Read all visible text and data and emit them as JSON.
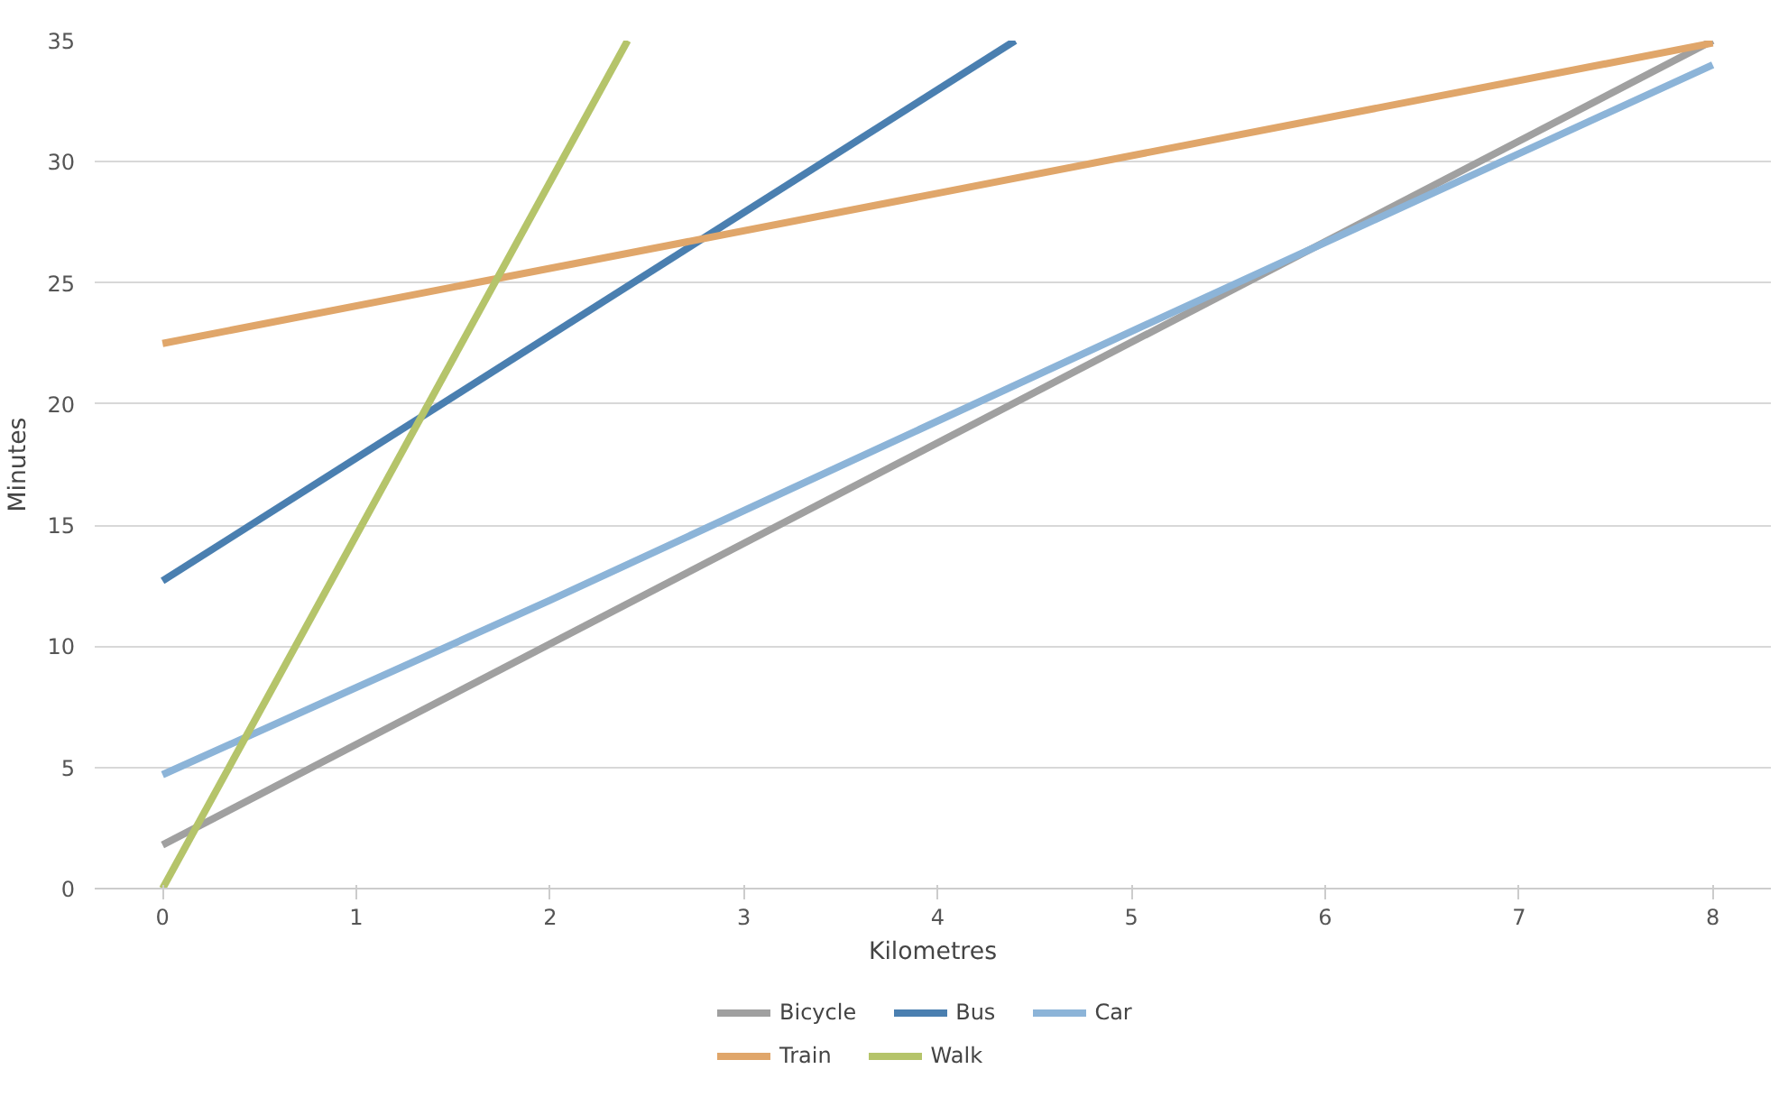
{
  "chart_data": {
    "type": "line",
    "xlabel": "Kilometres",
    "ylabel": "Minutes",
    "xlim": [
      -0.35,
      8.3
    ],
    "ylim": [
      0,
      35
    ],
    "xticks": [
      0,
      1,
      2,
      3,
      4,
      5,
      6,
      7,
      8
    ],
    "yticks": [
      0,
      5,
      10,
      15,
      20,
      25,
      30,
      35
    ],
    "grid": "y",
    "legend": "bottom",
    "line_style": "solid",
    "series": [
      {
        "name": "Bicycle",
        "color": "#a0a0a0",
        "x": [
          0,
          8
        ],
        "values": [
          1.8,
          35
        ]
      },
      {
        "name": "Bus",
        "color": "#4a7fb0",
        "x": [
          0,
          4.4
        ],
        "values": [
          12.7,
          35
        ]
      },
      {
        "name": "Car",
        "color": "#8cb4d8",
        "x": [
          0,
          2,
          5,
          8
        ],
        "values": [
          4.7,
          11.9,
          23.0,
          34.0
        ]
      },
      {
        "name": "Train",
        "color": "#e0a66a",
        "x": [
          0,
          8
        ],
        "values": [
          22.5,
          34.9
        ]
      },
      {
        "name": "Walk",
        "color": "#b5c46a",
        "x": [
          0,
          2.4
        ],
        "values": [
          0,
          35
        ]
      }
    ]
  }
}
